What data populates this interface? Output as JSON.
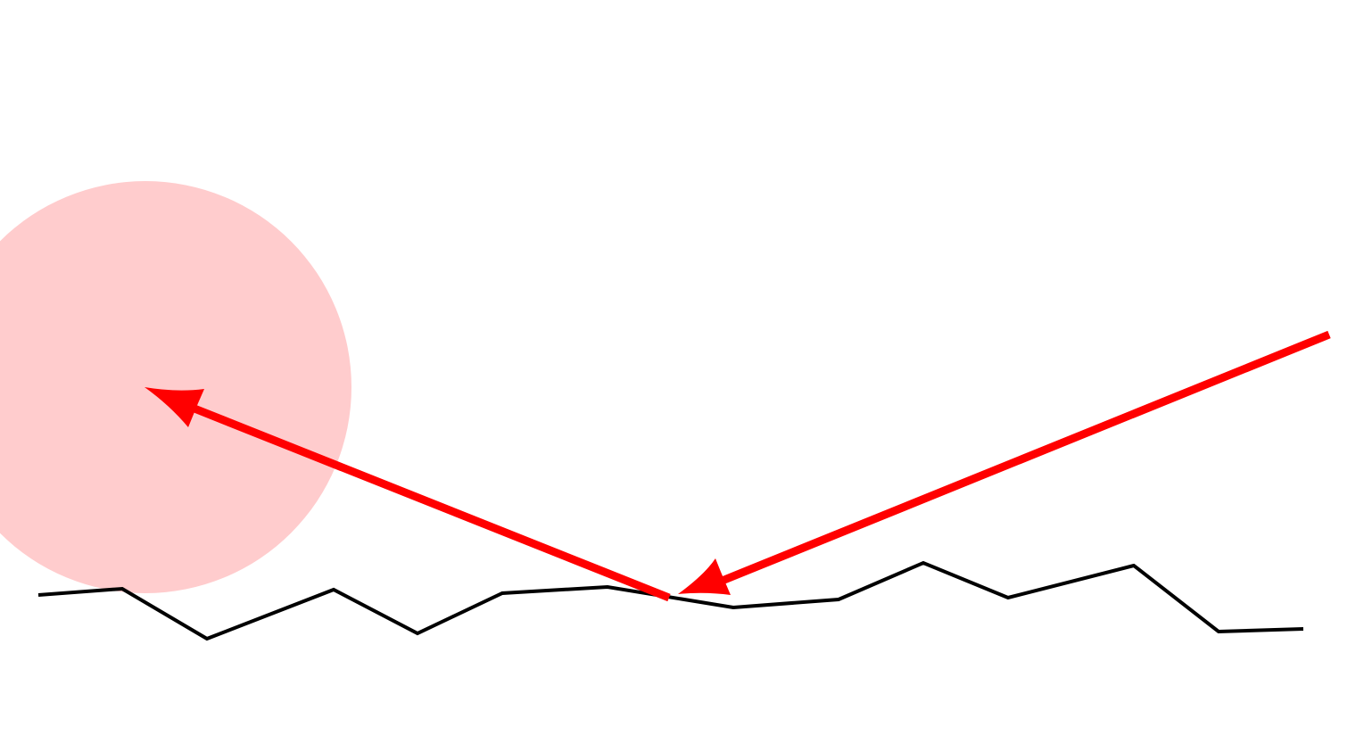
{
  "scene": {
    "background_color": "#ffffff",
    "target_zone": {
      "shape": "circle",
      "color": "#ffcccd"
    },
    "terrain": {
      "color": "#000000",
      "segment_count": 15
    },
    "shot": {
      "color": "#ff0000",
      "paths": [
        {
          "label": "incoming-shot",
          "direction": "down-left"
        },
        {
          "label": "deflected-shot",
          "direction": "up-left"
        }
      ]
    }
  }
}
